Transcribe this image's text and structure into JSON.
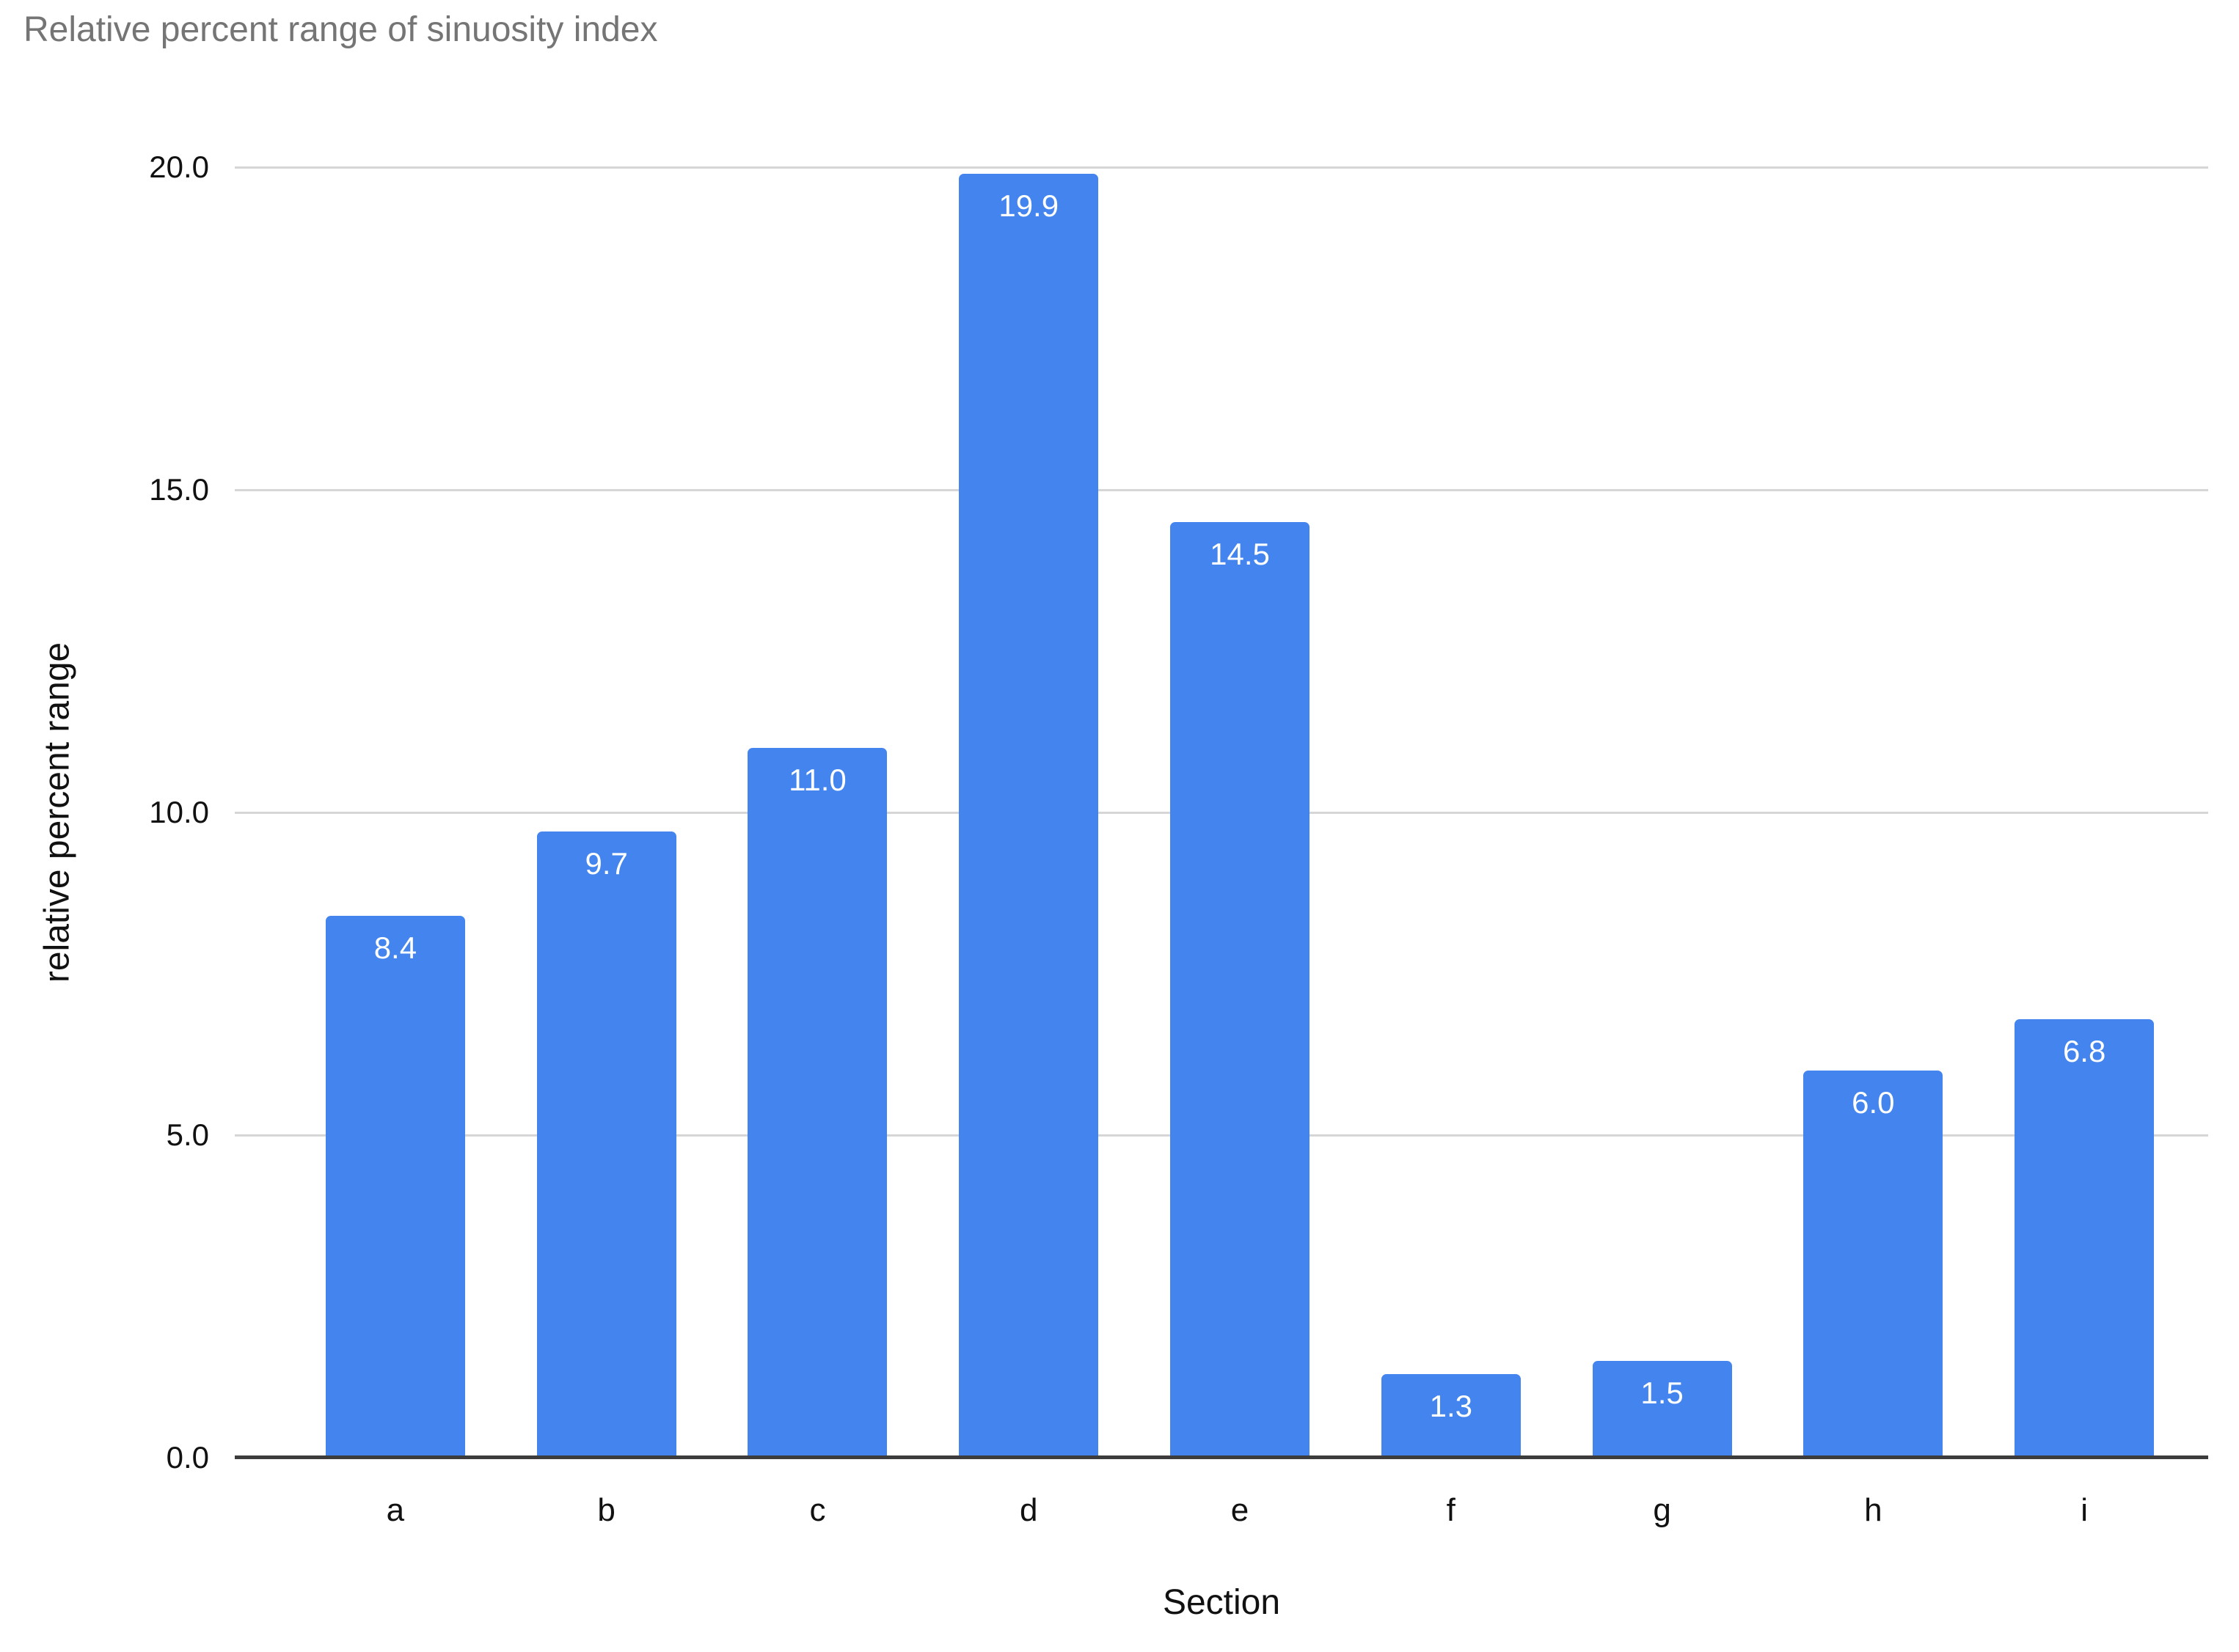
{
  "chart_data": {
    "type": "bar",
    "title": "Relative percent range of sinuosity index",
    "xlabel": "Section",
    "ylabel": "relative percent range",
    "categories": [
      "a",
      "b",
      "c",
      "d",
      "e",
      "f",
      "g",
      "h",
      "i"
    ],
    "values": [
      8.4,
      9.7,
      11.0,
      19.9,
      14.5,
      1.3,
      1.5,
      6.0,
      6.8
    ],
    "bar_value_labels": [
      "8.4",
      "9.7",
      "11.0",
      "19.9",
      "14.5",
      "1.3",
      "1.5",
      "6.0",
      "6.8"
    ],
    "ylim": [
      0,
      20
    ],
    "yticks": [
      0,
      5,
      10,
      15,
      20
    ],
    "ytick_labels": [
      "0.0",
      "5.0",
      "10.0",
      "15.0",
      "20.0"
    ],
    "grid": true,
    "legend_position": "none",
    "colors": {
      "bar_fill": "#4384EE",
      "value_label_text": "#ffffff",
      "title_text": "#757575",
      "axis_text": "#111111",
      "gridline": "#d6d6d6",
      "baseline_axis": "#3c3c3c",
      "background": "#ffffff"
    }
  }
}
